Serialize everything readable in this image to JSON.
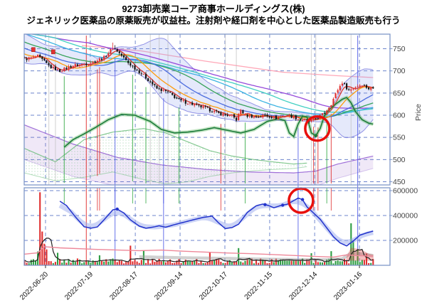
{
  "header": {
    "title_line1": "9273卸売業コーア商事ホールディングス(株)",
    "title_line2": "ジェネリック医薬品の原薬販売が収益柱。注射剤や経口剤を中心とした医薬品製造販売も行う"
  },
  "chart_data": {
    "type": "candlestick+volume",
    "x_axis": {
      "tick_labels": [
        "2022-06-20",
        "2022-07-19",
        "2022-08-17",
        "2022-09-14",
        "2022-10-17",
        "2022-11-15",
        "2022-12-14",
        "2023-01-16"
      ],
      "tick_days": [
        9.5,
        29.8,
        50.2,
        70.5,
        90.8,
        111.1,
        131.5,
        151.8
      ],
      "days_total": 159
    },
    "price_panel": {
      "ylabel": "Price",
      "ytick_labels": [
        "750",
        "700",
        "650",
        "600",
        "550",
        "500",
        "450"
      ],
      "ytick_values": [
        750,
        700,
        650,
        600,
        550,
        500,
        450
      ],
      "close_waypoints": [
        [
          0,
          726
        ],
        [
          6,
          733
        ],
        [
          12,
          708
        ],
        [
          16,
          700
        ],
        [
          22,
          712
        ],
        [
          30,
          718
        ],
        [
          36,
          730
        ],
        [
          40,
          752
        ],
        [
          42,
          745
        ],
        [
          47,
          718
        ],
        [
          54,
          690
        ],
        [
          60,
          660
        ],
        [
          65,
          652
        ],
        [
          70,
          634
        ],
        [
          76,
          625
        ],
        [
          82,
          616
        ],
        [
          88,
          604
        ],
        [
          94,
          598
        ],
        [
          96,
          590
        ],
        [
          98,
          612
        ],
        [
          100,
          600
        ],
        [
          105,
          596
        ],
        [
          109,
          600
        ],
        [
          114,
          594
        ],
        [
          119,
          601
        ],
        [
          124,
          592
        ],
        [
          129,
          586
        ],
        [
          133,
          594
        ],
        [
          136,
          605
        ],
        [
          139,
          626
        ],
        [
          142,
          658
        ],
        [
          144,
          674
        ],
        [
          147,
          656
        ],
        [
          150,
          664
        ],
        [
          153,
          670
        ],
        [
          156,
          660
        ],
        [
          158,
          661
        ]
      ],
      "ma_lines": [
        {
          "window": 5,
          "color": "#d93025"
        },
        {
          "window": 13,
          "color": "#ff9800"
        },
        {
          "window": 26,
          "color": "#4466dd"
        },
        {
          "window": 40,
          "color": "#2e9e52"
        },
        {
          "window": 60,
          "color": "#33b0e0"
        },
        {
          "window": 75,
          "color": "#38cdbf"
        },
        {
          "window": 90,
          "color": "#9040d8"
        }
      ],
      "pink_trend_line": [
        [
          26,
          757
        ],
        [
          53,
          745
        ],
        [
          82,
          722
        ],
        [
          117,
          697
        ],
        [
          142,
          689
        ],
        [
          158,
          685
        ]
      ],
      "green_ribbon": [
        [
          18,
          528
        ],
        [
          22,
          545
        ],
        [
          27,
          558
        ],
        [
          32,
          572
        ],
        [
          38,
          590
        ],
        [
          44,
          602
        ],
        [
          50,
          600
        ],
        [
          57,
          586
        ],
        [
          62,
          568
        ],
        [
          68,
          560
        ],
        [
          74,
          562
        ],
        [
          80,
          566
        ],
        [
          86,
          572
        ],
        [
          92,
          566
        ],
        [
          98,
          560
        ],
        [
          104,
          568
        ],
        [
          110,
          586
        ],
        [
          115,
          592
        ],
        [
          118,
          588
        ],
        [
          120,
          560
        ],
        [
          122,
          552
        ],
        [
          124,
          580
        ],
        [
          126,
          598
        ],
        [
          128,
          596
        ],
        [
          130,
          560
        ],
        [
          132,
          554
        ],
        [
          134,
          570
        ],
        [
          136,
          600
        ],
        [
          138,
          612
        ],
        [
          141,
          625
        ],
        [
          144,
          636
        ],
        [
          146,
          640
        ],
        [
          148,
          628
        ],
        [
          150,
          608
        ],
        [
          153,
          590
        ],
        [
          156,
          582
        ],
        [
          158,
          580
        ]
      ],
      "green_ribbon_marker": [
        132,
        554
      ],
      "lavender_band": {
        "upper": [
          [
            0,
            578
          ],
          [
            22,
            535
          ],
          [
            42,
            505
          ],
          [
            62,
            488
          ],
          [
            82,
            478
          ],
          [
            102,
            472
          ],
          [
            122,
            470
          ],
          [
            132,
            474
          ],
          [
            142,
            490
          ],
          [
            158,
            508
          ]
        ],
        "lower": [
          [
            0,
            500
          ],
          [
            22,
            462
          ],
          [
            42,
            440
          ],
          [
            62,
            430
          ],
          [
            82,
            428
          ],
          [
            102,
            430
          ],
          [
            122,
            434
          ],
          [
            132,
            440
          ],
          [
            142,
            458
          ],
          [
            158,
            480
          ]
        ]
      },
      "green_band": {
        "upper": [
          [
            0,
            525
          ],
          [
            14,
            495
          ],
          [
            27,
            545
          ],
          [
            40,
            562
          ],
          [
            54,
            570
          ],
          [
            64,
            560
          ],
          [
            74,
            540
          ],
          [
            84,
            520
          ],
          [
            94,
            508
          ],
          [
            104,
            500
          ],
          [
            114,
            494
          ],
          [
            122,
            490
          ],
          [
            128,
            492
          ]
        ],
        "lower": [
          [
            0,
            470
          ],
          [
            14,
            452
          ],
          [
            27,
            460
          ],
          [
            40,
            472
          ],
          [
            54,
            455
          ],
          [
            64,
            445
          ],
          [
            74,
            450
          ],
          [
            84,
            462
          ],
          [
            94,
            470
          ],
          [
            104,
            475
          ],
          [
            114,
            478
          ],
          [
            122,
            480
          ],
          [
            128,
            484
          ]
        ]
      },
      "event_marker_days": [
        [
          4,
          748
        ],
        [
          13,
          743
        ]
      ],
      "signal_lines": {
        "green_days": [
          18,
          49,
          55,
          70,
          100,
          137
        ],
        "red_days": [
          33,
          34,
          89,
          131,
          133,
          139
        ],
        "red_full_days": [
          28
        ],
        "blue_days": [
          41,
          63,
          124
        ],
        "blue_full_days": [
          151
        ]
      },
      "gray_highlight_days": [
        11,
        14,
        57,
        61,
        65,
        91,
        96,
        130,
        132,
        148
      ],
      "annotation_circle": {
        "day": 132.7,
        "price": 570,
        "radius": 17,
        "color": "#e8100c"
      }
    },
    "volume_panel": {
      "ytick_labels": [
        "600000",
        "400000",
        "200000"
      ],
      "ytick_values": [
        600000,
        400000,
        200000
      ],
      "base_volume": 15000,
      "volume_spikes": [
        [
          6,
          110000
        ],
        [
          7,
          580000
        ],
        [
          8,
          265000
        ],
        [
          9,
          160000
        ],
        [
          10,
          120000
        ],
        [
          15,
          90000
        ],
        [
          34,
          80000
        ],
        [
          48,
          150000
        ],
        [
          54,
          110000
        ],
        [
          84,
          90000
        ],
        [
          97,
          130000
        ],
        [
          130,
          90000
        ],
        [
          139,
          100000
        ],
        [
          148,
          335000
        ],
        [
          149,
          180000
        ],
        [
          151,
          120000
        ],
        [
          155,
          90000
        ]
      ],
      "forced_down_days": [
        7
      ],
      "forced_up_days": [
        148
      ],
      "blue_line": [
        [
          16,
          515000
        ],
        [
          19,
          480000
        ],
        [
          23,
          390000
        ],
        [
          27,
          310000
        ],
        [
          30,
          298000
        ],
        [
          33,
          308000
        ],
        [
          36,
          365000
        ],
        [
          40,
          445000
        ],
        [
          42,
          452000
        ],
        [
          45,
          420000
        ],
        [
          48,
          365000
        ],
        [
          52,
          315000
        ],
        [
          55,
          298000
        ],
        [
          58,
          306000
        ],
        [
          61,
          318000
        ],
        [
          64,
          306000
        ],
        [
          67,
          322000
        ],
        [
          72,
          345000
        ],
        [
          77,
          368000
        ],
        [
          81,
          385000
        ],
        [
          85,
          395000
        ],
        [
          88,
          340000
        ],
        [
          91,
          295000
        ],
        [
          94,
          303000
        ],
        [
          97,
          330000
        ],
        [
          101,
          425000
        ],
        [
          105,
          478000
        ],
        [
          108,
          492000
        ],
        [
          111,
          478000
        ],
        [
          113,
          462000
        ],
        [
          116,
          480000
        ],
        [
          119,
          490000
        ],
        [
          122,
          520000
        ],
        [
          124,
          540000
        ],
        [
          126,
          528000
        ],
        [
          128,
          470000
        ],
        [
          131,
          420000
        ],
        [
          134,
          370000
        ],
        [
          137,
          300000
        ],
        [
          140,
          230000
        ],
        [
          143,
          180000
        ],
        [
          146,
          156000
        ],
        [
          149,
          195000
        ],
        [
          152,
          242000
        ],
        [
          155,
          260000
        ],
        [
          158,
          275000
        ]
      ],
      "blue_marker_days": [
        42,
        109,
        117,
        126
      ],
      "pink_line": [
        [
          0,
          90000
        ],
        [
          6,
          100000
        ],
        [
          9,
          150000
        ],
        [
          16,
          140000
        ],
        [
          32,
          128000
        ],
        [
          52,
          118000
        ],
        [
          62,
          122000
        ],
        [
          72,
          113000
        ],
        [
          82,
          106000
        ],
        [
          92,
          99000
        ],
        [
          102,
          94000
        ],
        [
          112,
          87000
        ],
        [
          122,
          79000
        ],
        [
          132,
          71000
        ],
        [
          140,
          66000
        ],
        [
          146,
          84000
        ],
        [
          151,
          78000
        ],
        [
          158,
          73000
        ]
      ],
      "gray_line": [
        [
          52,
          68000
        ],
        [
          72,
          60000
        ],
        [
          92,
          55000
        ],
        [
          112,
          48000
        ],
        [
          127,
          45000
        ],
        [
          137,
          44000
        ],
        [
          144,
          52000
        ],
        [
          148,
          98000
        ],
        [
          152,
          92000
        ],
        [
          158,
          78000
        ]
      ],
      "red_bump_upper": [
        [
          146,
          62000
        ],
        [
          148,
          138000
        ],
        [
          151,
          130000
        ],
        [
          153,
          120000
        ],
        [
          156,
          90000
        ],
        [
          158,
          82000
        ]
      ],
      "annotation_circle": {
        "day": 125.3,
        "value": 520000,
        "radius": 17,
        "color": "#e8100c"
      }
    },
    "colors": {
      "candle_up": "#e03131",
      "candle_down": "#141414",
      "volume_up": "#2e9e44",
      "volume_down": "#e03030",
      "grid": "#3b5bbb",
      "border": "#8098c8",
      "blue_indicator": "#2233cc",
      "annotation": "#e8100c"
    }
  }
}
